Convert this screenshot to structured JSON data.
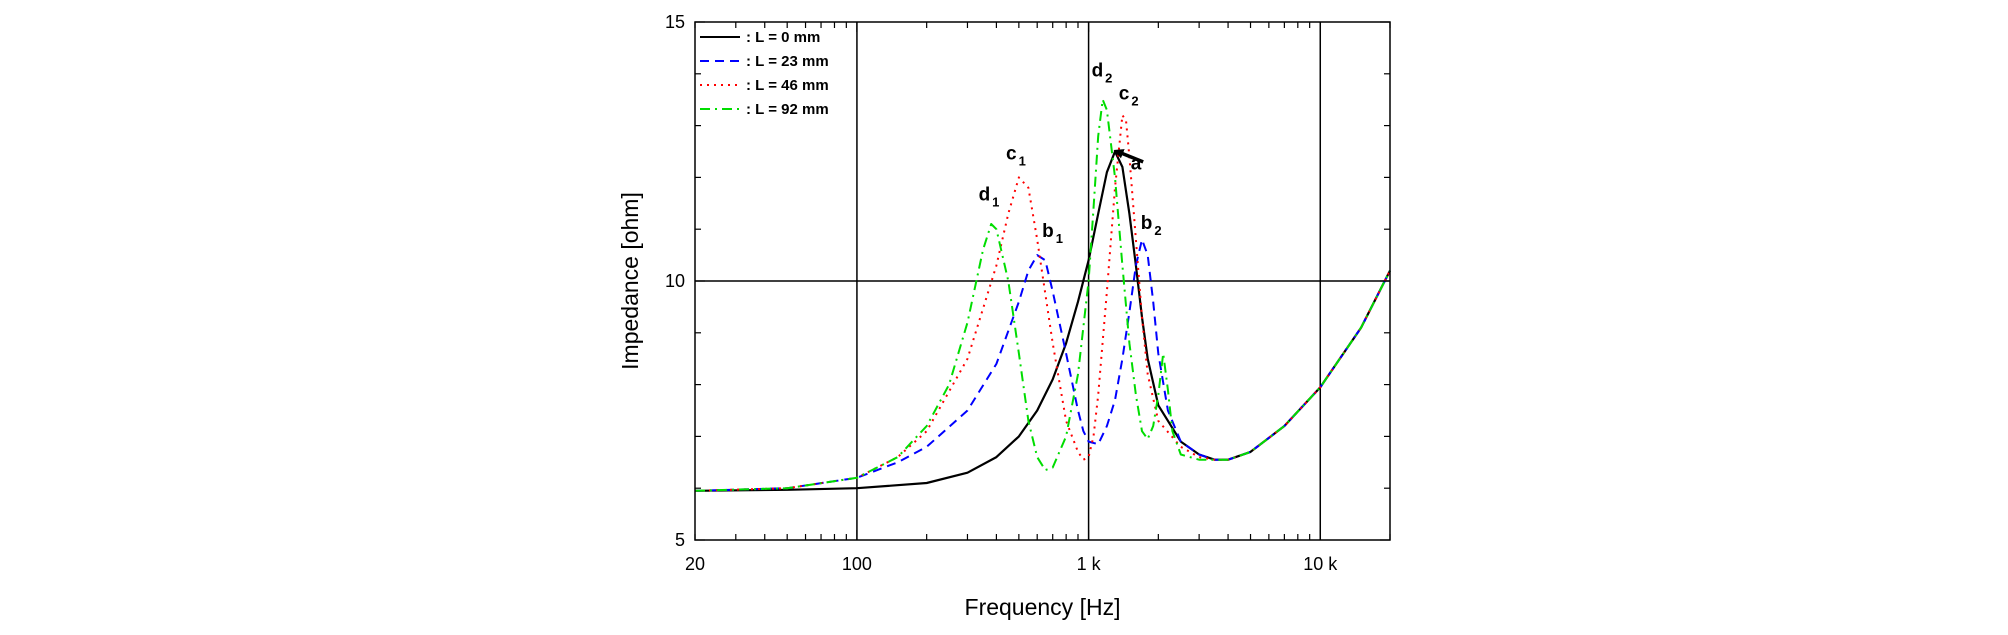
{
  "chart_data": {
    "type": "line",
    "xlabel": "Frequency [Hz]",
    "ylabel": "Impedance [ohm]",
    "xscale": "log",
    "xlim": [
      20,
      20000
    ],
    "ylim": [
      5,
      15
    ],
    "grid": true,
    "legend_position": "top-left",
    "x_ticks": [
      {
        "value": 20,
        "label": "20"
      },
      {
        "value": 100,
        "label": "100"
      },
      {
        "value": 1000,
        "label": "1 k"
      },
      {
        "value": 10000,
        "label": "10 k"
      }
    ],
    "y_ticks": [
      {
        "value": 5,
        "label": "5"
      },
      {
        "value": 10,
        "label": "10"
      },
      {
        "value": 15,
        "label": "15"
      }
    ],
    "series": [
      {
        "name": ": L = 0 mm",
        "color": "#000000",
        "dash": "solid",
        "points": [
          [
            20,
            5.95
          ],
          [
            50,
            5.97
          ],
          [
            100,
            6.0
          ],
          [
            200,
            6.1
          ],
          [
            300,
            6.3
          ],
          [
            400,
            6.6
          ],
          [
            500,
            7.0
          ],
          [
            600,
            7.5
          ],
          [
            700,
            8.1
          ],
          [
            800,
            8.8
          ],
          [
            900,
            9.6
          ],
          [
            1000,
            10.4
          ],
          [
            1100,
            11.3
          ],
          [
            1200,
            12.1
          ],
          [
            1300,
            12.5
          ],
          [
            1400,
            12.2
          ],
          [
            1500,
            11.3
          ],
          [
            1600,
            10.3
          ],
          [
            1700,
            9.3
          ],
          [
            1800,
            8.5
          ],
          [
            2000,
            7.6
          ],
          [
            2500,
            6.9
          ],
          [
            3000,
            6.65
          ],
          [
            3500,
            6.55
          ],
          [
            4000,
            6.55
          ],
          [
            5000,
            6.7
          ],
          [
            7000,
            7.2
          ],
          [
            10000,
            7.95
          ],
          [
            15000,
            9.1
          ],
          [
            20000,
            10.2
          ]
        ]
      },
      {
        "name": ": L = 23 mm",
        "color": "#0000ff",
        "dash": "dash",
        "points": [
          [
            20,
            5.95
          ],
          [
            50,
            6.0
          ],
          [
            100,
            6.2
          ],
          [
            150,
            6.5
          ],
          [
            200,
            6.8
          ],
          [
            300,
            7.5
          ],
          [
            400,
            8.4
          ],
          [
            500,
            9.6
          ],
          [
            550,
            10.2
          ],
          [
            600,
            10.5
          ],
          [
            650,
            10.4
          ],
          [
            700,
            9.8
          ],
          [
            800,
            8.6
          ],
          [
            900,
            7.5
          ],
          [
            950,
            7.1
          ],
          [
            1000,
            6.9
          ],
          [
            1100,
            6.85
          ],
          [
            1200,
            7.2
          ],
          [
            1300,
            7.7
          ],
          [
            1400,
            8.5
          ],
          [
            1500,
            9.4
          ],
          [
            1600,
            10.3
          ],
          [
            1700,
            10.8
          ],
          [
            1800,
            10.5
          ],
          [
            1900,
            9.6
          ],
          [
            2000,
            8.6
          ],
          [
            2200,
            7.5
          ],
          [
            2500,
            6.9
          ],
          [
            3000,
            6.65
          ],
          [
            3500,
            6.55
          ],
          [
            4000,
            6.55
          ],
          [
            5000,
            6.7
          ],
          [
            7000,
            7.2
          ],
          [
            10000,
            7.95
          ],
          [
            15000,
            9.1
          ],
          [
            20000,
            10.2
          ]
        ]
      },
      {
        "name": ": L = 46 mm",
        "color": "#ff0000",
        "dash": "dot",
        "points": [
          [
            20,
            5.95
          ],
          [
            50,
            6.0
          ],
          [
            100,
            6.2
          ],
          [
            150,
            6.6
          ],
          [
            200,
            7.1
          ],
          [
            300,
            8.5
          ],
          [
            400,
            10.3
          ],
          [
            450,
            11.3
          ],
          [
            500,
            12.0
          ],
          [
            550,
            11.8
          ],
          [
            600,
            10.8
          ],
          [
            700,
            8.8
          ],
          [
            800,
            7.3
          ],
          [
            900,
            6.7
          ],
          [
            950,
            6.55
          ],
          [
            1000,
            6.6
          ],
          [
            1050,
            7.0
          ],
          [
            1100,
            7.8
          ],
          [
            1200,
            9.8
          ],
          [
            1300,
            11.8
          ],
          [
            1400,
            13.2
          ],
          [
            1450,
            13.1
          ],
          [
            1500,
            12.4
          ],
          [
            1600,
            10.8
          ],
          [
            1700,
            9.3
          ],
          [
            1800,
            8.2
          ],
          [
            2000,
            7.3
          ],
          [
            2500,
            6.8
          ],
          [
            3000,
            6.6
          ],
          [
            3500,
            6.55
          ],
          [
            4000,
            6.55
          ],
          [
            5000,
            6.7
          ],
          [
            7000,
            7.2
          ],
          [
            10000,
            7.95
          ],
          [
            15000,
            9.1
          ],
          [
            20000,
            10.2
          ]
        ]
      },
      {
        "name": ": L = 92 mm",
        "color": "#00dd00",
        "dash": "dashdot",
        "points": [
          [
            20,
            5.95
          ],
          [
            50,
            6.0
          ],
          [
            100,
            6.2
          ],
          [
            150,
            6.6
          ],
          [
            200,
            7.2
          ],
          [
            250,
            8.0
          ],
          [
            300,
            9.2
          ],
          [
            350,
            10.6
          ],
          [
            380,
            11.1
          ],
          [
            400,
            11.0
          ],
          [
            450,
            10.0
          ],
          [
            500,
            8.6
          ],
          [
            550,
            7.3
          ],
          [
            600,
            6.6
          ],
          [
            650,
            6.35
          ],
          [
            700,
            6.4
          ],
          [
            800,
            7.0
          ],
          [
            900,
            8.2
          ],
          [
            1000,
            10.0
          ],
          [
            1050,
            11.4
          ],
          [
            1100,
            12.8
          ],
          [
            1150,
            13.5
          ],
          [
            1200,
            13.3
          ],
          [
            1300,
            12.0
          ],
          [
            1400,
            10.3
          ],
          [
            1500,
            8.8
          ],
          [
            1600,
            7.8
          ],
          [
            1700,
            7.1
          ],
          [
            1800,
            6.95
          ],
          [
            1900,
            7.2
          ],
          [
            2000,
            7.8
          ],
          [
            2100,
            8.6
          ],
          [
            2200,
            7.9
          ],
          [
            2300,
            7.1
          ],
          [
            2500,
            6.65
          ],
          [
            3000,
            6.55
          ],
          [
            3500,
            6.55
          ],
          [
            4000,
            6.55
          ],
          [
            5000,
            6.7
          ],
          [
            7000,
            7.2
          ],
          [
            10000,
            7.95
          ],
          [
            15000,
            9.1
          ],
          [
            20000,
            10.2
          ]
        ]
      }
    ],
    "annotations": [
      {
        "label": "a",
        "sub": "",
        "x": 1520,
        "y": 12.15
      },
      {
        "label": "b",
        "sub": "1",
        "x": 630,
        "y": 10.85
      },
      {
        "label": "b",
        "sub": "2",
        "x": 1680,
        "y": 11.0
      },
      {
        "label": "c",
        "sub": "1",
        "x": 440,
        "y": 12.35
      },
      {
        "label": "c",
        "sub": "2",
        "x": 1350,
        "y": 13.5
      },
      {
        "label": "d",
        "sub": "1",
        "x": 335,
        "y": 11.55
      },
      {
        "label": "d",
        "sub": "2",
        "x": 1030,
        "y": 13.95
      }
    ],
    "arrow": {
      "from": [
        1720,
        12.3
      ],
      "to": [
        1330,
        12.5
      ]
    }
  }
}
